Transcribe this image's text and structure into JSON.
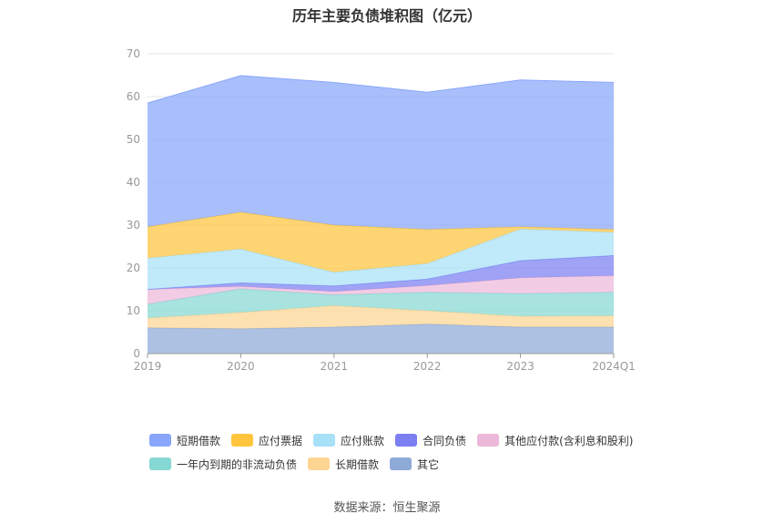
{
  "chart_data": {
    "type": "area",
    "title": "历年主要负债堆积图（亿元）",
    "categories": [
      "2019",
      "2020",
      "2021",
      "2022",
      "2023",
      "2024Q1"
    ],
    "ylim": [
      0,
      70
    ],
    "yticks": [
      "0",
      "10",
      "20",
      "30",
      "40",
      "50",
      "60",
      "70"
    ],
    "stacked": true,
    "grid": true,
    "legend_position": "bottom",
    "series": [
      {
        "name": "其它",
        "color": "#8eaad8",
        "values": [
          6.0,
          5.8,
          6.2,
          6.9,
          6.2,
          6.2
        ]
      },
      {
        "name": "长期借款",
        "color": "#fdd593",
        "values": [
          2.3,
          3.8,
          5.0,
          3.1,
          2.5,
          2.6
        ]
      },
      {
        "name": "一年内到期的非流动负债",
        "color": "#86d8d4",
        "values": [
          3.2,
          5.5,
          2.5,
          4.3,
          5.3,
          5.5
        ]
      },
      {
        "name": "其他应付款(含利息和股利)",
        "color": "#ebb8d9",
        "values": [
          3.5,
          0.6,
          0.8,
          1.6,
          3.7,
          3.9
        ]
      },
      {
        "name": "合同负债",
        "color": "#7b7ff1",
        "values": [
          0.0,
          0.8,
          1.3,
          1.5,
          4.0,
          4.7
        ]
      },
      {
        "name": "应付账款",
        "color": "#a8e0f8",
        "values": [
          7.3,
          7.9,
          3.2,
          3.6,
          7.4,
          5.4
        ]
      },
      {
        "name": "应付票据",
        "color": "#ffc53d",
        "values": [
          7.3,
          8.6,
          11.0,
          8.0,
          0.5,
          0.7
        ]
      },
      {
        "name": "短期借款",
        "color": "#88a6fb",
        "values": [
          28.9,
          31.9,
          33.3,
          32.0,
          34.3,
          34.3
        ]
      }
    ]
  },
  "legend": {
    "row1": [
      {
        "label": "短期借款",
        "color": "#88a6fb"
      },
      {
        "label": "应付票据",
        "color": "#ffc53d"
      },
      {
        "label": "应付账款",
        "color": "#a8e0f8"
      },
      {
        "label": "合同负债",
        "color": "#7b7ff1"
      },
      {
        "label": "其他应付款(含利息和股利)",
        "color": "#ebb8d9"
      }
    ],
    "row2": [
      {
        "label": "一年内到期的非流动负债",
        "color": "#86d8d4"
      },
      {
        "label": "长期借款",
        "color": "#fdd593"
      },
      {
        "label": "其它",
        "color": "#8eaad8"
      }
    ]
  },
  "source": "数据来源：恒生聚源"
}
